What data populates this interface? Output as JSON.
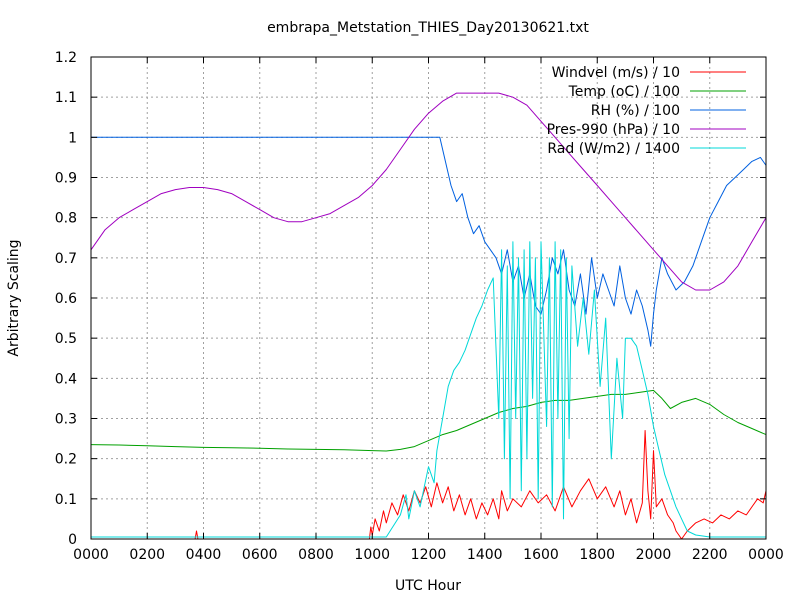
{
  "chart_data": {
    "type": "line",
    "title": "embrapa_Metstation_THIES_Day20130621.txt",
    "xlabel": "UTC Hour",
    "ylabel": "Arbitrary Scaling",
    "xlim": [
      0,
      24
    ],
    "ylim": [
      0,
      1.2
    ],
    "grid": true,
    "legend_position": "top-right",
    "x_tick_labels": [
      "0000",
      "0200",
      "0400",
      "0600",
      "0800",
      "1000",
      "1200",
      "1400",
      "1600",
      "1800",
      "2000",
      "2200",
      "0000"
    ],
    "y_tick_labels": [
      "0",
      "0.1",
      "0.2",
      "0.3",
      "0.4",
      "0.5",
      "0.6",
      "0.7",
      "0.8",
      "0.9",
      "1",
      "1.1",
      "1.2"
    ],
    "series": [
      {
        "name": "Windvel (m/s) / 10",
        "color": "#ff0000",
        "x": [
          0,
          3.7,
          3.75,
          3.8,
          9.9,
          9.95,
          10.0,
          10.1,
          10.25,
          10.4,
          10.5,
          10.7,
          10.9,
          11.1,
          11.3,
          11.5,
          11.7,
          11.9,
          12.1,
          12.3,
          12.5,
          12.7,
          12.9,
          13.1,
          13.3,
          13.5,
          13.7,
          13.9,
          14.1,
          14.3,
          14.5,
          14.6,
          14.8,
          15.0,
          15.3,
          15.6,
          15.9,
          16.2,
          16.5,
          16.8,
          17.1,
          17.4,
          17.7,
          18.0,
          18.3,
          18.6,
          18.8,
          19.0,
          19.2,
          19.4,
          19.6,
          19.7,
          19.8,
          19.9,
          20.0,
          20.1,
          20.3,
          20.5,
          20.7,
          20.8,
          20.9,
          21.0,
          21.2,
          21.5,
          21.8,
          22.1,
          22.4,
          22.7,
          23.0,
          23.3,
          23.5,
          23.7,
          23.9,
          24.0
        ],
        "y": [
          0,
          0,
          0.02,
          0,
          0,
          0.03,
          0.01,
          0.05,
          0.02,
          0.07,
          0.04,
          0.09,
          0.06,
          0.11,
          0.07,
          0.12,
          0.09,
          0.13,
          0.08,
          0.14,
          0.09,
          0.13,
          0.07,
          0.11,
          0.06,
          0.1,
          0.05,
          0.09,
          0.06,
          0.1,
          0.05,
          0.12,
          0.07,
          0.1,
          0.08,
          0.12,
          0.09,
          0.11,
          0.07,
          0.13,
          0.08,
          0.12,
          0.15,
          0.1,
          0.13,
          0.08,
          0.12,
          0.06,
          0.1,
          0.04,
          0.09,
          0.27,
          0.12,
          0.05,
          0.22,
          0.08,
          0.1,
          0.06,
          0.04,
          0.02,
          0.01,
          0.0,
          0.02,
          0.04,
          0.05,
          0.04,
          0.06,
          0.05,
          0.07,
          0.06,
          0.08,
          0.1,
          0.09,
          0.12
        ]
      },
      {
        "name": "Temp (oC) / 100",
        "color": "#00a000",
        "x": [
          0,
          1,
          2,
          3,
          4,
          5,
          6,
          7,
          8,
          9,
          10,
          10.5,
          11,
          11.5,
          12,
          12.5,
          13,
          13.5,
          14,
          14.5,
          15,
          15.5,
          16,
          16.5,
          17,
          17.5,
          18,
          18.5,
          19,
          19.5,
          20,
          20.3,
          20.6,
          21,
          21.5,
          22,
          22.5,
          23,
          23.5,
          24
        ],
        "y": [
          0.235,
          0.234,
          0.232,
          0.23,
          0.228,
          0.227,
          0.226,
          0.224,
          0.223,
          0.222,
          0.22,
          0.219,
          0.223,
          0.23,
          0.245,
          0.26,
          0.27,
          0.285,
          0.3,
          0.315,
          0.325,
          0.33,
          0.34,
          0.345,
          0.345,
          0.35,
          0.355,
          0.36,
          0.36,
          0.365,
          0.37,
          0.35,
          0.325,
          0.34,
          0.35,
          0.335,
          0.31,
          0.29,
          0.275,
          0.26
        ]
      },
      {
        "name": "RH (%) / 100",
        "color": "#0060e0",
        "x": [
          0,
          11,
          12.4,
          12.6,
          12.8,
          13.0,
          13.2,
          13.4,
          13.6,
          13.8,
          14.0,
          14.2,
          14.4,
          14.6,
          14.8,
          15.0,
          15.2,
          15.4,
          15.6,
          15.8,
          16.0,
          16.2,
          16.4,
          16.6,
          16.8,
          17.0,
          17.2,
          17.4,
          17.6,
          17.8,
          18.0,
          18.2,
          18.4,
          18.6,
          18.8,
          19.0,
          19.2,
          19.4,
          19.6,
          19.8,
          19.9,
          20.0,
          20.1,
          20.3,
          20.5,
          20.8,
          21.1,
          21.4,
          21.7,
          22.0,
          22.3,
          22.6,
          22.9,
          23.2,
          23.5,
          23.8,
          24.0
        ],
        "y": [
          1.0,
          1.0,
          1.0,
          0.94,
          0.88,
          0.84,
          0.86,
          0.8,
          0.76,
          0.78,
          0.74,
          0.72,
          0.7,
          0.66,
          0.72,
          0.64,
          0.68,
          0.6,
          0.66,
          0.58,
          0.56,
          0.62,
          0.7,
          0.66,
          0.72,
          0.62,
          0.58,
          0.66,
          0.56,
          0.7,
          0.6,
          0.66,
          0.62,
          0.58,
          0.68,
          0.6,
          0.56,
          0.62,
          0.58,
          0.52,
          0.48,
          0.56,
          0.62,
          0.7,
          0.66,
          0.62,
          0.64,
          0.68,
          0.74,
          0.8,
          0.84,
          0.88,
          0.9,
          0.92,
          0.94,
          0.95,
          0.93
        ]
      },
      {
        "name": "Pres-990 (hPa) / 10",
        "color": "#a000c0",
        "x": [
          0,
          0.5,
          1,
          1.5,
          2,
          2.5,
          3,
          3.5,
          4,
          4.5,
          5,
          5.5,
          6,
          6.5,
          7,
          7.5,
          8,
          8.5,
          9,
          9.5,
          10,
          10.5,
          11,
          11.5,
          12,
          12.5,
          13,
          13.5,
          14,
          14.5,
          15,
          15.5,
          16,
          16.5,
          17,
          17.5,
          18,
          18.5,
          19,
          19.5,
          20,
          20.5,
          21,
          21.5,
          22,
          22.5,
          23,
          23.5,
          24
        ],
        "y": [
          0.72,
          0.77,
          0.8,
          0.82,
          0.84,
          0.86,
          0.87,
          0.875,
          0.875,
          0.87,
          0.86,
          0.84,
          0.82,
          0.8,
          0.79,
          0.79,
          0.8,
          0.81,
          0.83,
          0.85,
          0.88,
          0.92,
          0.97,
          1.02,
          1.06,
          1.09,
          1.11,
          1.11,
          1.11,
          1.11,
          1.1,
          1.08,
          1.04,
          1.0,
          0.96,
          0.92,
          0.88,
          0.84,
          0.8,
          0.76,
          0.72,
          0.68,
          0.64,
          0.62,
          0.62,
          0.64,
          0.68,
          0.74,
          0.8
        ]
      },
      {
        "name": "Rad (W/m2) / 1400",
        "color": "#00d8d8",
        "x": [
          0,
          9.0,
          10.0,
          10.5,
          11.0,
          11.2,
          11.3,
          11.5,
          11.7,
          12.0,
          12.2,
          12.3,
          12.5,
          12.7,
          12.9,
          13.1,
          13.3,
          13.5,
          13.7,
          13.9,
          14.1,
          14.3,
          14.5,
          14.6,
          14.7,
          14.8,
          14.9,
          15.0,
          15.1,
          15.2,
          15.3,
          15.4,
          15.5,
          15.6,
          15.7,
          15.8,
          15.9,
          16.0,
          16.2,
          16.3,
          16.4,
          16.5,
          16.6,
          16.7,
          16.8,
          16.9,
          17.0,
          17.1,
          17.3,
          17.5,
          17.7,
          17.9,
          18.1,
          18.3,
          18.5,
          18.7,
          18.9,
          19.0,
          19.2,
          19.4,
          19.6,
          19.8,
          20.0,
          20.2,
          20.4,
          20.6,
          20.8,
          21.0,
          21.2,
          21.5,
          22.0,
          22.5,
          23.0,
          24.0
        ],
        "y": [
          0.005,
          0.005,
          0.005,
          0.005,
          0.06,
          0.11,
          0.05,
          0.12,
          0.08,
          0.18,
          0.14,
          0.22,
          0.3,
          0.38,
          0.42,
          0.44,
          0.47,
          0.51,
          0.55,
          0.58,
          0.62,
          0.65,
          0.3,
          0.72,
          0.2,
          0.68,
          0.1,
          0.74,
          0.3,
          0.7,
          0.12,
          0.72,
          0.2,
          0.74,
          0.35,
          0.7,
          0.1,
          0.74,
          0.28,
          0.7,
          0.08,
          0.74,
          0.3,
          0.72,
          0.05,
          0.7,
          0.25,
          0.68,
          0.48,
          0.6,
          0.46,
          0.62,
          0.38,
          0.55,
          0.2,
          0.45,
          0.3,
          0.5,
          0.5,
          0.48,
          0.42,
          0.36,
          0.28,
          0.22,
          0.16,
          0.12,
          0.08,
          0.05,
          0.02,
          0.01,
          0.005,
          0.005,
          0.005,
          0.005
        ]
      }
    ]
  }
}
